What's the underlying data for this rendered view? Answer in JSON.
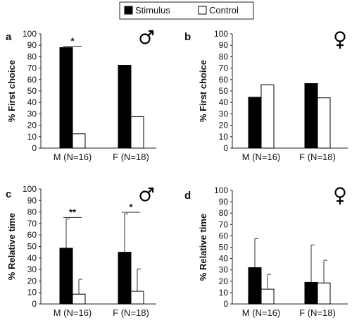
{
  "legend": [
    {
      "label": "Stimulus",
      "color": "#000000"
    },
    {
      "label": "Control",
      "color": "#ffffff"
    }
  ],
  "chart_data": [
    {
      "type": "bar",
      "panel_label": "a",
      "sex_symbol": "male",
      "categories": [
        "M (N=16)",
        "F (N=18)"
      ],
      "ylabel": "% First choice",
      "ylim": [
        0,
        100
      ],
      "yticks": [
        0,
        10,
        20,
        30,
        40,
        50,
        60,
        70,
        80,
        90,
        100
      ],
      "series": [
        {
          "name": "Stimulus",
          "values": [
            88,
            72.5
          ]
        },
        {
          "name": "Control",
          "values": [
            12.5,
            27.5
          ]
        }
      ],
      "significance": [
        {
          "category": 0,
          "label": "*"
        }
      ]
    },
    {
      "type": "bar",
      "panel_label": "b",
      "sex_symbol": "female",
      "categories": [
        "M (N=16)",
        "F (N=18)"
      ],
      "ylabel": "% First choice",
      "ylim": [
        0,
        100
      ],
      "yticks": [
        0,
        10,
        20,
        30,
        40,
        50,
        60,
        70,
        80,
        90,
        100
      ],
      "series": [
        {
          "name": "Stimulus",
          "values": [
            44.5,
            56.5
          ]
        },
        {
          "name": "Control",
          "values": [
            55.5,
            44
          ]
        }
      ],
      "significance": []
    },
    {
      "type": "bar",
      "panel_label": "c",
      "sex_symbol": "male",
      "categories": [
        "M (N=16)",
        "F (N=18)"
      ],
      "ylabel": "% Relative time",
      "ylim": [
        0,
        100
      ],
      "yticks": [
        0,
        10,
        20,
        30,
        40,
        50,
        60,
        70,
        80,
        90,
        100
      ],
      "series": [
        {
          "name": "Stimulus",
          "values": [
            48.5,
            45
          ],
          "errors": [
            25.5,
            33.5
          ]
        },
        {
          "name": "Control",
          "values": [
            8.5,
            11
          ],
          "errors": [
            13,
            19.5
          ]
        }
      ],
      "significance": [
        {
          "category": 0,
          "label": "**"
        },
        {
          "category": 1,
          "label": "*"
        }
      ]
    },
    {
      "type": "bar",
      "panel_label": "d",
      "sex_symbol": "female",
      "categories": [
        "M (N=16)",
        "F (N=18)"
      ],
      "ylabel": "% Relative time",
      "ylim": [
        0,
        100
      ],
      "yticks": [
        0,
        10,
        20,
        30,
        40,
        50,
        60,
        70,
        80,
        90,
        100
      ],
      "series": [
        {
          "name": "Stimulus",
          "values": [
            32,
            19
          ],
          "errors": [
            25.5,
            33
          ]
        },
        {
          "name": "Control",
          "values": [
            13,
            18.5
          ],
          "errors": [
            13,
            20
          ]
        }
      ],
      "significance": []
    }
  ]
}
